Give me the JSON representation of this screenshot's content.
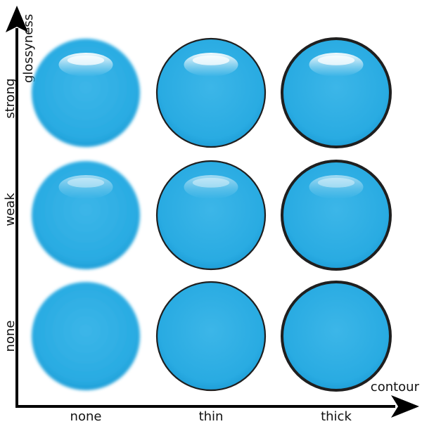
{
  "diagram": {
    "y_axis": {
      "label": "glossyness",
      "levels": [
        "none",
        "weak",
        "strong"
      ]
    },
    "x_axis": {
      "label": "contour",
      "levels": [
        "none",
        "thin",
        "thick"
      ]
    },
    "cells": [
      {
        "gloss": "strong",
        "contour": "none"
      },
      {
        "gloss": "strong",
        "contour": "thin"
      },
      {
        "gloss": "strong",
        "contour": "thick"
      },
      {
        "gloss": "weak",
        "contour": "none"
      },
      {
        "gloss": "weak",
        "contour": "thin"
      },
      {
        "gloss": "weak",
        "contour": "thick"
      },
      {
        "gloss": "none",
        "contour": "none"
      },
      {
        "gloss": "none",
        "contour": "thin"
      },
      {
        "gloss": "none",
        "contour": "thick"
      }
    ],
    "colors": {
      "ball": "#29abe2",
      "ball_dark": "#1a9bd7",
      "outline": "#1f1f1f",
      "axis": "#000000",
      "highlight": "#ffffff"
    }
  }
}
